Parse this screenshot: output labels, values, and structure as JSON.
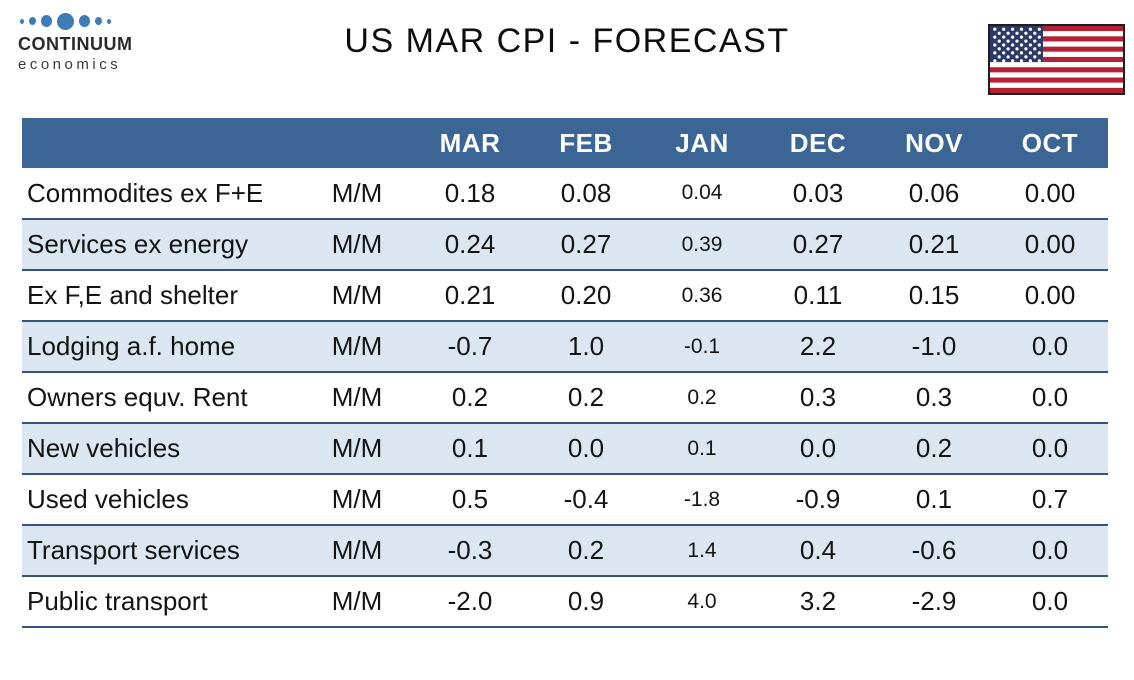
{
  "brand": {
    "name": "CONTINUUM",
    "tagline": "economics",
    "dot_color": "#3E7CB5"
  },
  "flag": {
    "red": "#B22234",
    "canton": "#2E3A66",
    "white": "#FFFFFF",
    "border": "#1E1E1E"
  },
  "styles": {
    "header_bg": "#3A6594",
    "header_text": "#FFFFFF",
    "alt_row_bg": "#DCE6F1",
    "divider": "#31547E"
  },
  "chart_data": {
    "type": "table",
    "title": "US MAR CPI - FORECAST",
    "columns": [
      "MAR",
      "FEB",
      "JAN",
      "DEC",
      "NOV",
      "OCT"
    ],
    "frequency_column_label": "M/M",
    "rows": [
      {
        "label": "Commodites ex F+E",
        "freq": "M/M",
        "values": [
          "0.18",
          "0.08",
          "0.04",
          "0.03",
          "0.06",
          "0.00"
        ]
      },
      {
        "label": "Services ex energy",
        "freq": "M/M",
        "values": [
          "0.24",
          "0.27",
          "0.39",
          "0.27",
          "0.21",
          "0.00"
        ]
      },
      {
        "label": "Ex F,E and shelter",
        "freq": "M/M",
        "values": [
          "0.21",
          "0.20",
          "0.36",
          "0.11",
          "0.15",
          "0.00"
        ]
      },
      {
        "label": "Lodging a.f. home",
        "freq": "M/M",
        "values": [
          "-0.7",
          "1.0",
          "-0.1",
          "2.2",
          "-1.0",
          "0.0"
        ]
      },
      {
        "label": "Owners equv. Rent",
        "freq": "M/M",
        "values": [
          "0.2",
          "0.2",
          "0.2",
          "0.3",
          "0.3",
          "0.0"
        ]
      },
      {
        "label": "New vehicles",
        "freq": "M/M",
        "values": [
          "0.1",
          "0.0",
          "0.1",
          "0.0",
          "0.2",
          "0.0"
        ]
      },
      {
        "label": "Used vehicles",
        "freq": "M/M",
        "values": [
          "0.5",
          "-0.4",
          "-1.8",
          "-0.9",
          "0.1",
          "0.7"
        ]
      },
      {
        "label": "Transport services",
        "freq": "M/M",
        "values": [
          "-0.3",
          "0.2",
          "1.4",
          "0.4",
          "-0.6",
          "0.0"
        ]
      },
      {
        "label": "Public transport",
        "freq": "M/M",
        "values": [
          "-2.0",
          "0.9",
          "4.0",
          "3.2",
          "-2.9",
          "0.0"
        ]
      }
    ]
  }
}
